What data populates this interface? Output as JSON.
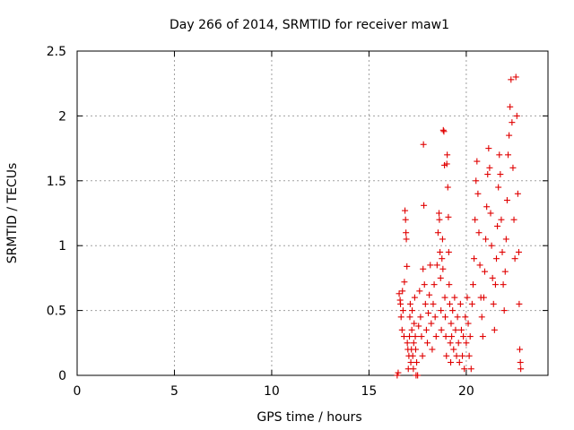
{
  "chart_data": {
    "type": "scatter",
    "title": "Day 266 of 2014, SRMTID for receiver maw1",
    "xlabel": "GPS time / hours",
    "ylabel": "SRMTID / TECUs",
    "xlim": [
      0,
      24.2
    ],
    "ylim": [
      0,
      2.5
    ],
    "xticks": [
      0,
      5,
      10,
      15,
      20
    ],
    "xtick_labels": [
      "0",
      "5",
      "10",
      "15",
      "20"
    ],
    "yticks": [
      0,
      0.5,
      1,
      1.5,
      2,
      2.5
    ],
    "ytick_labels": [
      "0",
      "0.5",
      "1",
      "1.5",
      "2",
      "2.5"
    ],
    "grid": true,
    "marker": "plus",
    "series": [
      {
        "name": "maw1",
        "color": "#e00000",
        "points": [
          [
            16.45,
            0.0
          ],
          [
            16.5,
            0.02
          ],
          [
            16.55,
            0.63
          ],
          [
            16.6,
            0.58
          ],
          [
            16.62,
            0.55
          ],
          [
            16.65,
            0.45
          ],
          [
            16.7,
            0.35
          ],
          [
            16.72,
            0.65
          ],
          [
            16.75,
            0.5
          ],
          [
            16.8,
            0.3
          ],
          [
            16.82,
            0.72
          ],
          [
            16.85,
            1.27
          ],
          [
            16.88,
            1.2
          ],
          [
            16.9,
            1.1
          ],
          [
            16.92,
            1.05
          ],
          [
            16.95,
            0.84
          ],
          [
            16.97,
            0.25
          ],
          [
            17.0,
            0.2
          ],
          [
            17.02,
            0.05
          ],
          [
            17.05,
            0.15
          ],
          [
            17.08,
            0.3
          ],
          [
            17.1,
            0.45
          ],
          [
            17.12,
            0.55
          ],
          [
            17.15,
            0.1
          ],
          [
            17.18,
            0.2
          ],
          [
            17.2,
            0.35
          ],
          [
            17.22,
            0.5
          ],
          [
            17.25,
            0.15
          ],
          [
            17.28,
            0.05
          ],
          [
            17.3,
            0.25
          ],
          [
            17.32,
            0.4
          ],
          [
            17.35,
            0.6
          ],
          [
            17.38,
            0.3
          ],
          [
            17.4,
            0.2
          ],
          [
            17.42,
            0.0
          ],
          [
            17.45,
            0.1
          ],
          [
            17.5,
            0.0
          ],
          [
            17.55,
            0.38
          ],
          [
            17.6,
            0.65
          ],
          [
            17.65,
            0.45
          ],
          [
            17.7,
            0.3
          ],
          [
            17.75,
            0.15
          ],
          [
            17.78,
            0.82
          ],
          [
            17.8,
            1.78
          ],
          [
            17.82,
            1.31
          ],
          [
            17.85,
            0.7
          ],
          [
            17.9,
            0.55
          ],
          [
            17.95,
            0.35
          ],
          [
            18.0,
            0.25
          ],
          [
            18.05,
            0.48
          ],
          [
            18.1,
            0.62
          ],
          [
            18.15,
            0.85
          ],
          [
            18.2,
            0.4
          ],
          [
            18.25,
            0.2
          ],
          [
            18.3,
            0.55
          ],
          [
            18.35,
            0.7
          ],
          [
            18.4,
            0.45
          ],
          [
            18.45,
            0.3
          ],
          [
            18.5,
            0.85
          ],
          [
            18.55,
            1.1
          ],
          [
            18.6,
            1.25
          ],
          [
            18.62,
            1.2
          ],
          [
            18.65,
            0.95
          ],
          [
            18.68,
            0.75
          ],
          [
            18.7,
            0.5
          ],
          [
            18.72,
            0.35
          ],
          [
            18.75,
            0.9
          ],
          [
            18.78,
            1.05
          ],
          [
            18.8,
            0.82
          ],
          [
            18.82,
            1.89
          ],
          [
            18.85,
            1.88
          ],
          [
            18.88,
            1.62
          ],
          [
            18.9,
            0.6
          ],
          [
            18.92,
            0.45
          ],
          [
            18.95,
            0.3
          ],
          [
            18.98,
            0.15
          ],
          [
            19.0,
            1.63
          ],
          [
            19.02,
            1.7
          ],
          [
            19.05,
            1.45
          ],
          [
            19.08,
            1.22
          ],
          [
            19.1,
            0.95
          ],
          [
            19.12,
            0.7
          ],
          [
            19.15,
            0.55
          ],
          [
            19.18,
            0.25
          ],
          [
            19.2,
            0.1
          ],
          [
            19.22,
            0.4
          ],
          [
            19.25,
            0.3
          ],
          [
            19.3,
            0.5
          ],
          [
            19.35,
            0.2
          ],
          [
            19.4,
            0.6
          ],
          [
            19.45,
            0.35
          ],
          [
            19.5,
            0.15
          ],
          [
            19.55,
            0.45
          ],
          [
            19.6,
            0.25
          ],
          [
            19.65,
            0.1
          ],
          [
            19.7,
            0.55
          ],
          [
            19.75,
            0.35
          ],
          [
            19.8,
            0.15
          ],
          [
            19.85,
            0.3
          ],
          [
            19.9,
            0.05
          ],
          [
            19.95,
            0.45
          ],
          [
            20.0,
            0.25
          ],
          [
            20.05,
            0.6
          ],
          [
            20.1,
            0.4
          ],
          [
            20.15,
            0.15
          ],
          [
            20.2,
            0.3
          ],
          [
            20.25,
            0.05
          ],
          [
            20.3,
            0.55
          ],
          [
            20.35,
            0.7
          ],
          [
            20.4,
            0.9
          ],
          [
            20.45,
            1.2
          ],
          [
            20.5,
            1.5
          ],
          [
            20.55,
            1.65
          ],
          [
            20.6,
            1.4
          ],
          [
            20.65,
            1.1
          ],
          [
            20.7,
            0.85
          ],
          [
            20.75,
            0.6
          ],
          [
            20.8,
            0.45
          ],
          [
            20.85,
            0.3
          ],
          [
            20.9,
            0.6
          ],
          [
            20.95,
            0.8
          ],
          [
            21.0,
            1.05
          ],
          [
            21.05,
            1.3
          ],
          [
            21.1,
            1.55
          ],
          [
            21.15,
            1.75
          ],
          [
            21.2,
            1.6
          ],
          [
            21.25,
            1.25
          ],
          [
            21.3,
            1.0
          ],
          [
            21.35,
            0.75
          ],
          [
            21.4,
            0.55
          ],
          [
            21.45,
            0.35
          ],
          [
            21.5,
            0.7
          ],
          [
            21.55,
            0.9
          ],
          [
            21.6,
            1.15
          ],
          [
            21.65,
            1.45
          ],
          [
            21.7,
            1.7
          ],
          [
            21.75,
            1.55
          ],
          [
            21.8,
            1.2
          ],
          [
            21.85,
            0.95
          ],
          [
            21.9,
            0.7
          ],
          [
            21.95,
            0.5
          ],
          [
            22.0,
            0.8
          ],
          [
            22.05,
            1.05
          ],
          [
            22.1,
            1.35
          ],
          [
            22.15,
            1.7
          ],
          [
            22.2,
            1.85
          ],
          [
            22.25,
            2.07
          ],
          [
            22.3,
            2.28
          ],
          [
            22.35,
            1.95
          ],
          [
            22.4,
            1.6
          ],
          [
            22.45,
            1.2
          ],
          [
            22.5,
            0.9
          ],
          [
            22.55,
            2.3
          ],
          [
            22.6,
            2.0
          ],
          [
            22.65,
            1.4
          ],
          [
            22.7,
            0.95
          ],
          [
            22.72,
            0.55
          ],
          [
            22.75,
            0.2
          ],
          [
            22.78,
            0.1
          ],
          [
            22.8,
            0.05
          ]
        ]
      }
    ]
  }
}
